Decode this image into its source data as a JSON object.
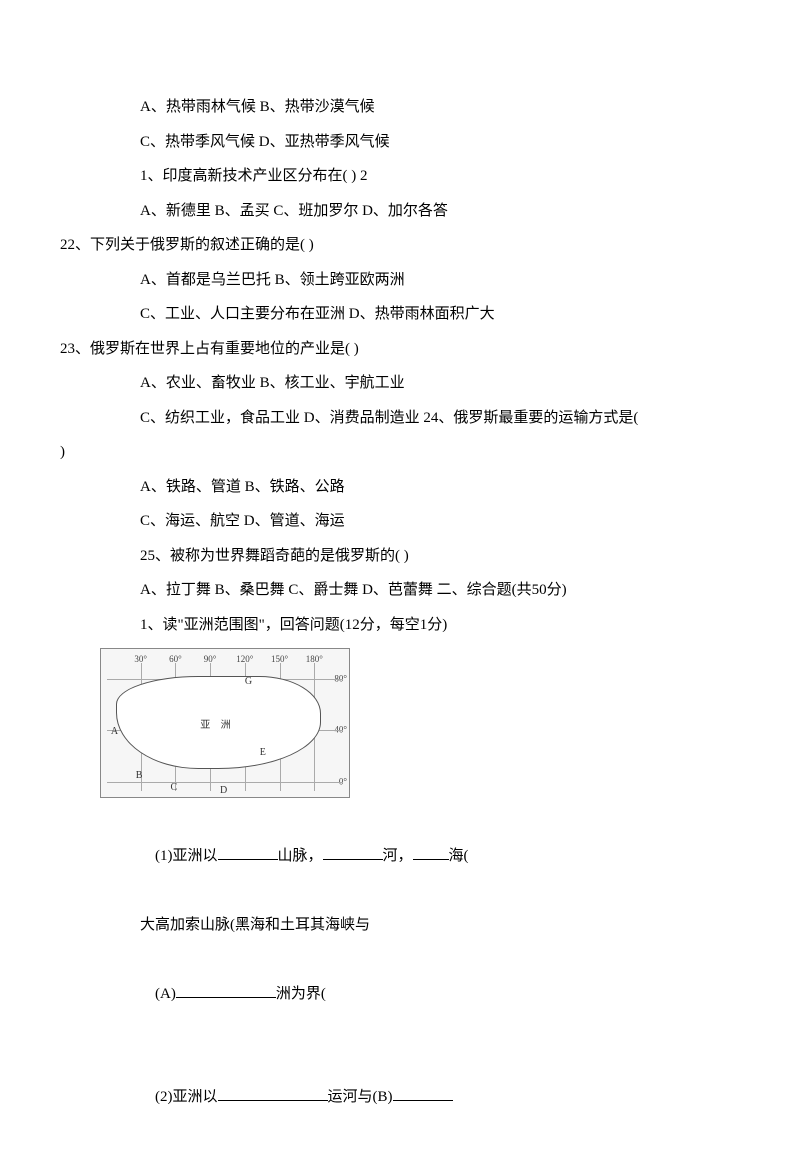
{
  "lines": {
    "l1": "A、热带雨林气候 B、热带沙漠气候",
    "l2": "C、热带季风气候 D、亚热带季风气候",
    "l3": "1、印度高新技术产业区分布在( ) 2",
    "l4": "A、新德里 B、孟买 C、班加罗尔 D、加尔各答",
    "l5": "22、下列关于俄罗斯的叙述正确的是( )",
    "l6": "A、首都是乌兰巴托 B、领土跨亚欧两洲",
    "l7": "C、工业、人口主要分布在亚洲 D、热带雨林面积广大",
    "l8": "23、俄罗斯在世界上占有重要地位的产业是( )",
    "l9": "A、农业、畜牧业 B、核工业、宇航工业",
    "l10a": "C、纺织工业，食品工业 D、消费品制造业 24、俄罗斯最重要的运输方式是(",
    "l10b": ")",
    "l11": "A、铁路、管道 B、铁路、公路",
    "l12": "C、海运、航空 D、管道、海运",
    "l13": "25、被称为世界舞蹈奇葩的是俄罗斯的( )",
    "l14": "A、拉丁舞 B、桑巴舞 C、爵士舞 D、芭蕾舞 二、综合题(共50分)",
    "l15": "1、读\"亚洲范围图\"，回答问题(12分，每空1分)",
    "q1_pre": "(1)亚洲以",
    "q1_mid1": "山脉，",
    "q1_mid2": "河，",
    "q1_end": "海(",
    "q2": "大高加索山脉(黑海和土耳其海峡与",
    "q3_pre": "(A)",
    "q3_end": "洲为界(",
    "q4_pre": "(2)亚洲以",
    "q4_mid": "运河与(B)"
  },
  "map": {
    "top_coords": [
      "30°",
      "60°",
      "90°",
      "120°",
      "150°",
      "180°"
    ],
    "right_coords": [
      "80°",
      "40°",
      "0°"
    ],
    "labels": {
      "center": "亚 洲",
      "A": "A",
      "B": "B",
      "C": "C",
      "D": "D",
      "E": "E",
      "G": "G"
    },
    "colors": {
      "bg": "#f6f6f6",
      "grid": "#aaaaaa",
      "land_border": "#555555"
    }
  },
  "blanks": {
    "w_medium": 60,
    "w_small": 36,
    "w_large": 100,
    "w_xlarge": 110
  }
}
